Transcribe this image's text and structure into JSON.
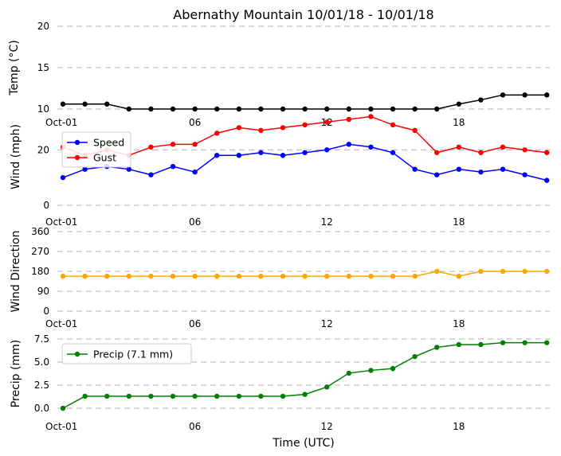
{
  "title": "Abernathy Mountain 10/01/18 - 10/01/18",
  "xlabel": "Time (UTC)",
  "x_ticks": [
    "Oct-01",
    "06",
    "12",
    "18"
  ],
  "x_tick_hours": [
    0,
    6,
    12,
    18
  ],
  "x_hours": [
    0,
    1,
    2,
    3,
    4,
    5,
    6,
    7,
    8,
    9,
    10,
    11,
    12,
    13,
    14,
    15,
    16,
    17,
    18,
    19,
    20,
    21,
    22
  ],
  "chart_data": [
    {
      "type": "line",
      "ylabel": "Temp (°C)",
      "ylim": [
        10,
        20
      ],
      "yticks": [
        10,
        15,
        20
      ],
      "legend": null,
      "series": [
        {
          "name": "Temp",
          "color": "#000000",
          "values": [
            10.6,
            10.6,
            10.6,
            10,
            10,
            10,
            10,
            10,
            10,
            10,
            10,
            10,
            10,
            10,
            10,
            10,
            10,
            10,
            10.6,
            11.1,
            11.7,
            11.7,
            11.7
          ]
        }
      ]
    },
    {
      "type": "line",
      "ylabel": "Wind (mph)",
      "ylim": [
        0,
        35
      ],
      "yticks": [
        0,
        20
      ],
      "legend": "upper-left",
      "series": [
        {
          "name": "Speed",
          "color": "#0000ff",
          "values": [
            10,
            13,
            14,
            13,
            11,
            14,
            12,
            18,
            18,
            19,
            18,
            19,
            20,
            22,
            21,
            19,
            13,
            11,
            13,
            12,
            13,
            11,
            9
          ]
        },
        {
          "name": "Gust",
          "color": "#ff0000",
          "values": [
            21,
            18,
            20,
            18,
            21,
            22,
            22,
            26,
            28,
            27,
            28,
            29,
            30,
            31,
            32,
            29,
            27,
            19,
            21,
            19,
            21,
            20,
            19
          ]
        }
      ]
    },
    {
      "type": "line",
      "ylabel": "Wind Direction",
      "ylim": [
        0,
        360
      ],
      "yticks": [
        0,
        90,
        180,
        270,
        360
      ],
      "legend": null,
      "series": [
        {
          "name": "Direction",
          "color": "#ffa500",
          "values": [
            158,
            158,
            158,
            158,
            158,
            158,
            158,
            158,
            158,
            158,
            158,
            158,
            158,
            158,
            158,
            158,
            158,
            180,
            158,
            180,
            180,
            180,
            180
          ]
        }
      ]
    },
    {
      "type": "line",
      "ylabel": "Precip (mm)",
      "ylim": [
        0,
        7.5
      ],
      "yticks": [
        "0.0",
        "2.5",
        "5.0",
        "7.5"
      ],
      "legend": "upper-left",
      "series": [
        {
          "name": "Precip (7.1 mm)",
          "color": "#008000",
          "values": [
            0,
            1.3,
            1.3,
            1.3,
            1.3,
            1.3,
            1.3,
            1.3,
            1.3,
            1.3,
            1.3,
            1.5,
            2.3,
            3.8,
            4.1,
            4.3,
            5.6,
            6.6,
            6.9,
            6.9,
            7.1,
            7.1,
            7.1
          ]
        }
      ]
    }
  ]
}
